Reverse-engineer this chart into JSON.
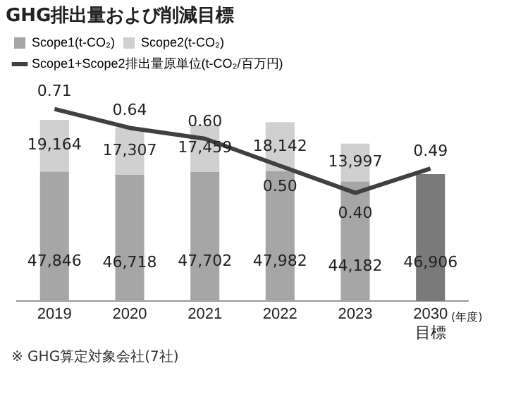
{
  "chart_data": {
    "type": "bar",
    "title": "GHG排出量および削減目標",
    "xlabel": "(年度)",
    "categories": [
      "2019",
      "2020",
      "2021",
      "2022",
      "2023",
      "2030\n目標"
    ],
    "stacked": true,
    "tick_labels": "x",
    "grid": false,
    "legend": "top",
    "series": [
      {
        "name": "Scope1(t-CO₂)",
        "color": "#a6a6a6",
        "colors": [
          "#a6a6a6",
          "#a6a6a6",
          "#a6a6a6",
          "#a6a6a6",
          "#a6a6a6",
          "#7a7a7a"
        ],
        "values": [
          47846,
          46718,
          47702,
          47982,
          44182,
          46906
        ],
        "value_labels": [
          "47,846",
          "46,718",
          "47,702",
          "47,982",
          "44,182",
          "46,906"
        ]
      },
      {
        "name": "Scope2(t-CO₂)",
        "color": "#d0d0d0",
        "values": [
          19164,
          17307,
          17459,
          18142,
          13997,
          null
        ],
        "value_labels": [
          "19,164",
          "17,307",
          "17,459",
          "18,142",
          "13,997",
          null
        ]
      },
      {
        "name": "Scope1+Scope2排出量原単位(t-CO₂/百万円)",
        "type": "line",
        "axis": "y2",
        "color": "#404040",
        "marker": "none",
        "values": [
          0.71,
          0.64,
          0.6,
          0.5,
          0.4,
          0.49
        ],
        "value_labels": [
          "0.71",
          "0.64",
          "0.60",
          "0.50",
          "0.40",
          "0.49"
        ]
      }
    ],
    "annotations": [
      "※ GHG算定対象会社(7社)"
    ]
  }
}
